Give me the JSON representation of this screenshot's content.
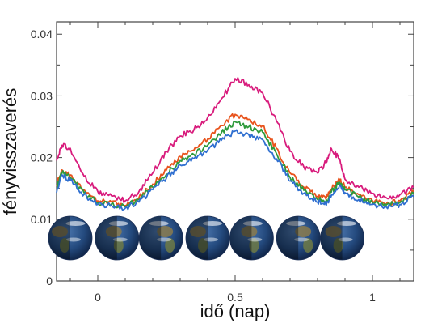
{
  "chart_data": {
    "type": "line",
    "xlabel": "idő (nap)",
    "ylabel": "fényvisszaverés",
    "xlim": [
      -0.15,
      1.15
    ],
    "ylim": [
      0,
      0.042
    ],
    "x_ticks": [
      0,
      0.5,
      1
    ],
    "x_tick_labels": [
      "0",
      "0.5",
      "1"
    ],
    "y_ticks": [
      0,
      0.01,
      0.02,
      0.03,
      0.04
    ],
    "y_tick_labels": [
      "0",
      "0.01",
      "0.02",
      "0.03",
      "0.04"
    ],
    "grid": false,
    "legend": "none",
    "x": [
      -0.15,
      -0.13,
      -0.1,
      -0.05,
      0,
      0.05,
      0.1,
      0.15,
      0.2,
      0.25,
      0.3,
      0.35,
      0.4,
      0.45,
      0.5,
      0.55,
      0.6,
      0.65,
      0.7,
      0.75,
      0.8,
      0.83,
      0.85,
      0.88,
      0.9,
      0.95,
      1,
      1.05,
      1.1,
      1.15
    ],
    "series": [
      {
        "color": "#d81b7c",
        "values": [
          0.0195,
          0.022,
          0.0215,
          0.017,
          0.0145,
          0.0138,
          0.013,
          0.0145,
          0.0175,
          0.021,
          0.0235,
          0.0245,
          0.0265,
          0.0295,
          0.0328,
          0.0318,
          0.0305,
          0.026,
          0.021,
          0.0185,
          0.0175,
          0.0192,
          0.0215,
          0.0198,
          0.0165,
          0.0152,
          0.0142,
          0.0135,
          0.014,
          0.0152
        ]
      },
      {
        "color": "#e8531c",
        "values": [
          0.0155,
          0.018,
          0.0172,
          0.0148,
          0.013,
          0.0128,
          0.0122,
          0.0135,
          0.0157,
          0.018,
          0.0202,
          0.0212,
          0.023,
          0.0252,
          0.027,
          0.0262,
          0.0252,
          0.0215,
          0.0175,
          0.0152,
          0.0137,
          0.0133,
          0.0148,
          0.0165,
          0.0152,
          0.014,
          0.013,
          0.0125,
          0.013,
          0.0145
        ]
      },
      {
        "color": "#2e9a3c",
        "values": [
          0.015,
          0.0175,
          0.0168,
          0.0143,
          0.0127,
          0.0125,
          0.012,
          0.0132,
          0.0152,
          0.0173,
          0.0195,
          0.0205,
          0.022,
          0.024,
          0.0258,
          0.025,
          0.0241,
          0.0207,
          0.0168,
          0.0147,
          0.0132,
          0.0128,
          0.0144,
          0.016,
          0.0148,
          0.0136,
          0.0127,
          0.0123,
          0.0127,
          0.0141
        ]
      },
      {
        "color": "#2f6fd0",
        "values": [
          0.0143,
          0.0172,
          0.0163,
          0.014,
          0.0124,
          0.0122,
          0.0118,
          0.0128,
          0.0148,
          0.0167,
          0.0188,
          0.0198,
          0.0212,
          0.0228,
          0.0243,
          0.0237,
          0.0229,
          0.0198,
          0.0162,
          0.0142,
          0.0128,
          0.0124,
          0.0138,
          0.0155,
          0.0143,
          0.0132,
          0.0124,
          0.012,
          0.0124,
          0.0137
        ]
      }
    ],
    "globe_view_times": [
      -0.1,
      0.07,
      0.23,
      0.4,
      0.56,
      0.73,
      0.89
    ]
  }
}
